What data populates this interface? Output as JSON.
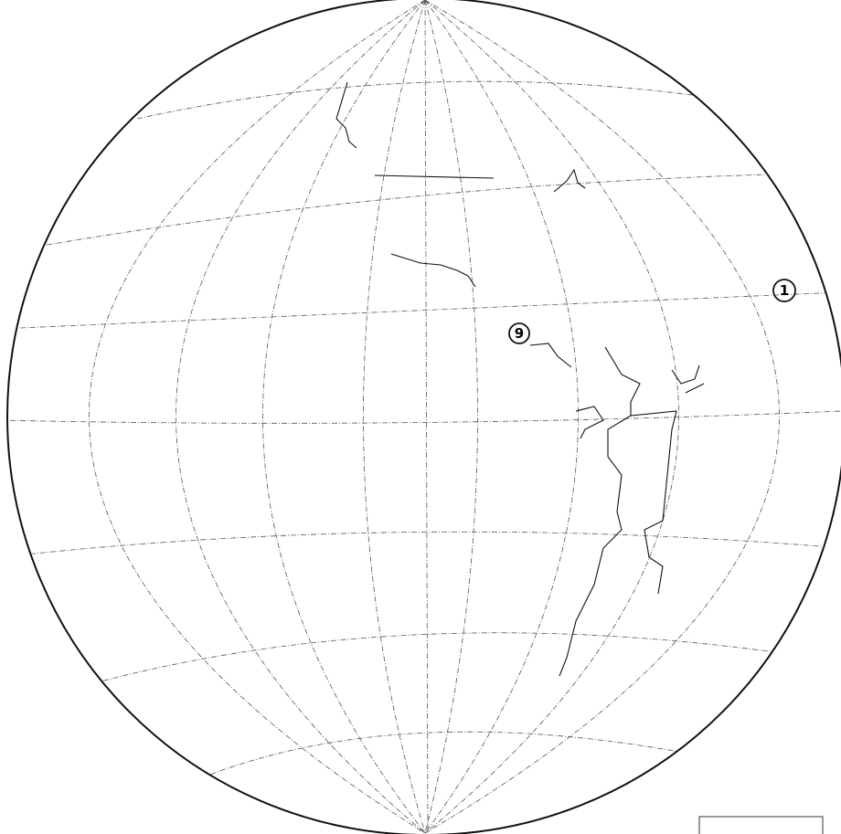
{
  "labels": [
    {
      "text": "1"
    },
    {
      "text": "9"
    }
  ]
}
